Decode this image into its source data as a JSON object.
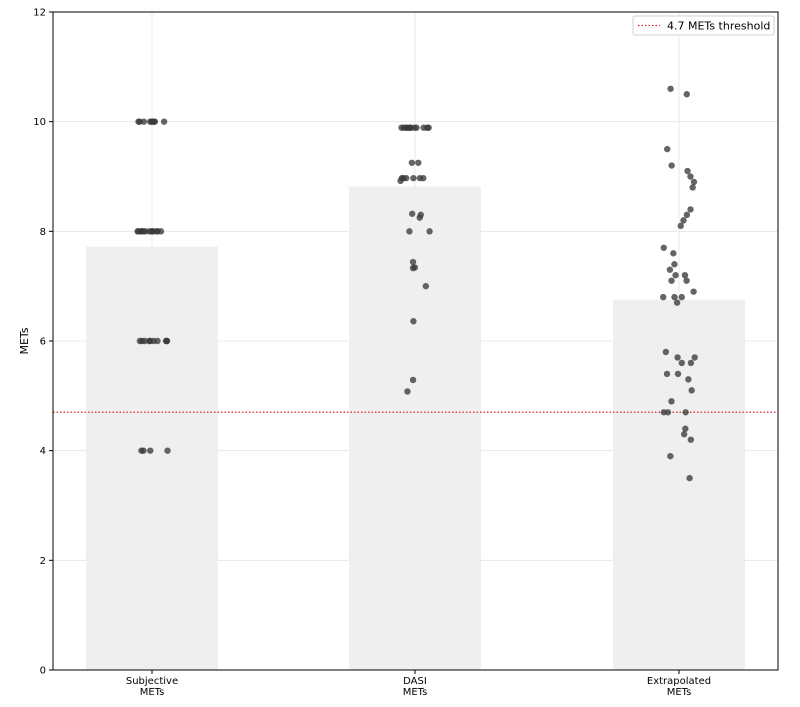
{
  "chart_data": {
    "type": "bar",
    "title": "",
    "xlabel": "",
    "ylabel": "METs",
    "ylim": [
      0,
      12
    ],
    "yticks": [
      0,
      2,
      4,
      6,
      8,
      10,
      12
    ],
    "grid": true,
    "legend_position": "top-right",
    "categories": [
      {
        "line1": "Subjective",
        "line2": "METs"
      },
      {
        "line1": "DASI",
        "line2": "METs"
      },
      {
        "line1": "Extrapolated",
        "line2": "METs"
      }
    ],
    "bar_values": [
      7.72,
      8.82,
      6.75
    ],
    "bar_color": "#efefef",
    "point_color": "#3a3a3a",
    "threshold": {
      "value": 4.7,
      "label": "4.7 METs threshold",
      "color": "#e8202a"
    },
    "points": [
      [
        10,
        10,
        10,
        10,
        10,
        10,
        10,
        10,
        10,
        8,
        8,
        8,
        8,
        8,
        8,
        8,
        8,
        8,
        8,
        8,
        8,
        8,
        6,
        6,
        6,
        6,
        6,
        6,
        6,
        6,
        6,
        6,
        4,
        4,
        4,
        4
      ],
      [
        9.89,
        9.89,
        9.89,
        9.89,
        9.89,
        9.89,
        9.89,
        9.89,
        9.89,
        9.89,
        9.89,
        9.89,
        9.25,
        9.25,
        8.97,
        8.97,
        8.97,
        8.97,
        8.97,
        8.97,
        8.92,
        8.32,
        8.3,
        8.25,
        8.0,
        8.0,
        7.44,
        7.34,
        7.33,
        7.0,
        6.36,
        5.29,
        5.08
      ],
      [
        10.6,
        10.5,
        9.5,
        9.2,
        9.1,
        9.0,
        8.9,
        8.8,
        8.4,
        8.3,
        8.2,
        8.1,
        7.7,
        7.6,
        7.4,
        7.3,
        7.2,
        7.2,
        7.1,
        7.1,
        6.9,
        6.8,
        6.8,
        6.8,
        6.7,
        5.8,
        5.7,
        5.7,
        5.6,
        5.6,
        5.4,
        5.4,
        5.3,
        5.1,
        4.9,
        4.7,
        4.7,
        4.7,
        4.4,
        4.3,
        4.2,
        3.9,
        3.5
      ]
    ]
  }
}
